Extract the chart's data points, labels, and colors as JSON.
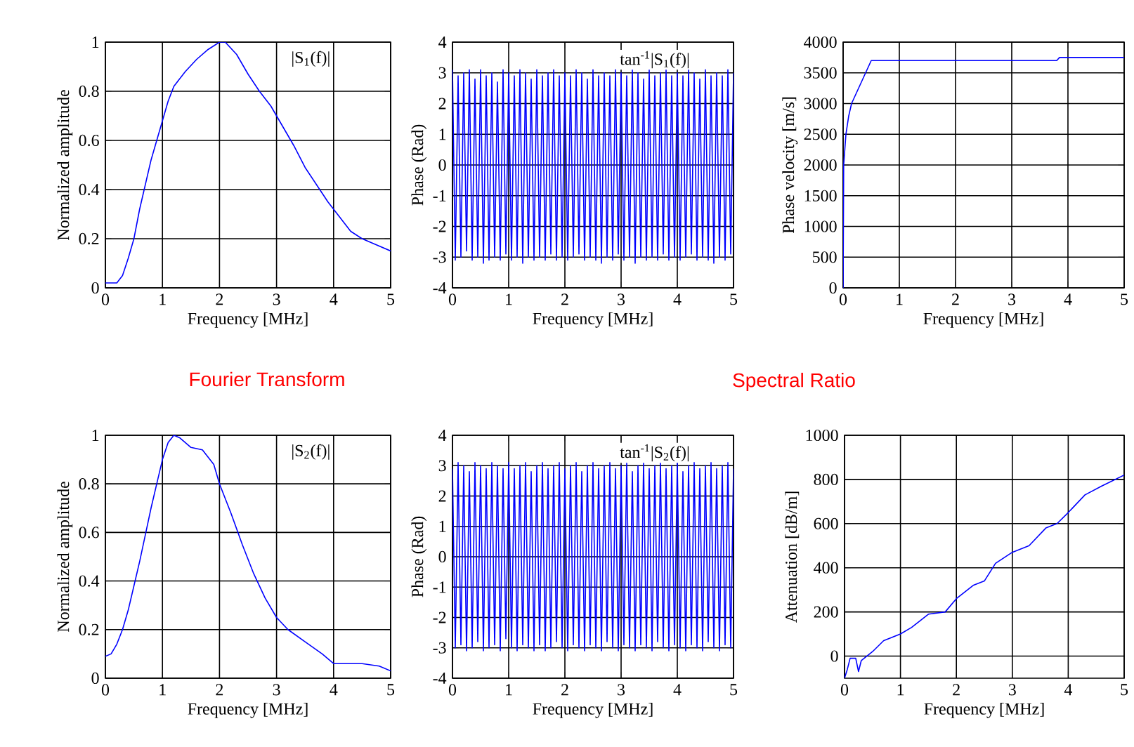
{
  "chart_data": [
    {
      "type": "line",
      "xlabel": "Frequency [MHz]",
      "ylabel": "Normalized amplitude",
      "annotations": [
        "|S$_{1}$(f)|"
      ],
      "xlim": [
        0,
        5
      ],
      "ylim": [
        0,
        1
      ],
      "xticks": [
        0,
        1,
        2,
        3,
        4,
        5
      ],
      "yticks": [
        0,
        0.2,
        0.4,
        0.6,
        0.8,
        1
      ],
      "grid": true,
      "series": [
        {
          "color": "#0000ff",
          "x": [
            0,
            0.2,
            0.3,
            0.4,
            0.5,
            0.6,
            0.7,
            0.8,
            0.9,
            1.0,
            1.1,
            1.2,
            1.4,
            1.6,
            1.8,
            2.0,
            2.1,
            2.3,
            2.5,
            2.7,
            2.9,
            3.1,
            3.3,
            3.5,
            3.7,
            3.9,
            4.1,
            4.3,
            4.5,
            4.7,
            5.0
          ],
          "values": [
            0.02,
            0.02,
            0.05,
            0.12,
            0.2,
            0.32,
            0.42,
            0.52,
            0.6,
            0.68,
            0.76,
            0.82,
            0.88,
            0.93,
            0.97,
            1.0,
            1.0,
            0.95,
            0.87,
            0.8,
            0.74,
            0.66,
            0.58,
            0.49,
            0.42,
            0.35,
            0.29,
            0.23,
            0.2,
            0.18,
            0.15
          ]
        }
      ]
    },
    {
      "type": "line",
      "xlabel": "Frequency [MHz]",
      "ylabel": "Phase (Rad)",
      "annotations": [
        "tan$^{-1}$|S$_{1}$(f)|"
      ],
      "xlim": [
        0,
        5
      ],
      "ylim": [
        -4,
        4
      ],
      "xticks": [
        0,
        1,
        2,
        3,
        4,
        5
      ],
      "yticks": [
        -4,
        -3,
        -2,
        -1,
        0,
        1,
        2,
        3,
        4
      ],
      "grid": true,
      "series": [
        {
          "color": "#0000ff",
          "x": [
            0,
            0.05,
            0.1,
            0.15,
            0.2,
            0.25,
            0.3,
            0.35,
            0.4,
            0.45,
            0.5,
            0.55,
            0.6,
            0.65,
            0.7,
            0.75,
            0.8,
            0.85,
            0.9,
            0.95,
            1,
            1.05,
            1.1,
            1.15,
            1.2,
            1.25,
            1.3,
            1.35,
            1.4,
            1.45,
            1.5,
            1.55,
            1.6,
            1.65,
            1.7,
            1.75,
            1.8,
            1.85,
            1.9,
            1.95,
            2,
            2.05,
            2.1,
            2.15,
            2.2,
            2.25,
            2.3,
            2.35,
            2.4,
            2.45,
            2.5,
            2.55,
            2.6,
            2.65,
            2.7,
            2.75,
            2.8,
            2.85,
            2.9,
            2.95,
            3,
            3.05,
            3.1,
            3.15,
            3.2,
            3.25,
            3.3,
            3.35,
            3.4,
            3.45,
            3.5,
            3.55,
            3.6,
            3.65,
            3.7,
            3.75,
            3.8,
            3.85,
            3.9,
            3.95,
            4,
            4.05,
            4.1,
            4.15,
            4.2,
            4.25,
            4.3,
            4.35,
            4.4,
            4.45,
            4.5,
            4.55,
            4.6,
            4.65,
            4.7,
            4.75,
            4.8,
            4.85,
            4.9,
            4.95,
            5
          ],
          "values": [
            3.1,
            -3.1,
            2.9,
            -3.0,
            3.0,
            -2.8,
            3.1,
            -3.1,
            2.8,
            -3.0,
            3.1,
            -3.2,
            2.9,
            -3.1,
            3.0,
            -3.0,
            2.7,
            -3.1,
            3.1,
            -2.9,
            3.0,
            -3.1,
            2.9,
            -3.0,
            3.1,
            -3.2,
            3.0,
            -3.0,
            2.8,
            -3.1,
            3.1,
            -3.0,
            2.9,
            -3.1,
            3.0,
            -2.9,
            3.1,
            -3.1,
            2.9,
            -3.0,
            3.0,
            -3.1,
            2.9,
            -3.0,
            3.1,
            -2.9,
            3.0,
            -3.1,
            2.8,
            -3.0,
            3.1,
            -3.1,
            2.9,
            -3.2,
            3.0,
            -3.0,
            2.9,
            -3.1,
            3.1,
            -2.9,
            3.0,
            -3.1,
            2.9,
            -3.0,
            3.1,
            -3.2,
            3.0,
            -3.0,
            2.8,
            -3.1,
            3.1,
            -3.0,
            2.9,
            -3.1,
            3.0,
            -2.9,
            3.1,
            -3.1,
            2.9,
            -3.0,
            3.0,
            -3.1,
            2.9,
            -3.0,
            3.1,
            -2.9,
            3.0,
            -3.1,
            2.8,
            -3.0,
            3.1,
            -3.1,
            2.9,
            -3.2,
            3.0,
            -3.0,
            2.9,
            -3.1,
            3.1,
            -2.9,
            3.0
          ]
        }
      ]
    },
    {
      "type": "line",
      "xlabel": "Frequency [MHz]",
      "ylabel": "Phase velocity [m/s]",
      "xlim": [
        0,
        5
      ],
      "ylim": [
        0,
        4000
      ],
      "xticks": [
        0,
        1,
        2,
        3,
        4,
        5
      ],
      "yticks": [
        0,
        500,
        1000,
        1500,
        2000,
        2500,
        3000,
        3500,
        4000
      ],
      "grid": true,
      "series": [
        {
          "color": "#0000ff",
          "x": [
            0,
            0.01,
            0.05,
            0.1,
            0.15,
            0.25,
            0.35,
            0.5,
            1,
            2,
            3,
            3.8,
            3.85,
            5
          ],
          "values": [
            0,
            2000,
            2500,
            2800,
            3000,
            3200,
            3400,
            3700,
            3700,
            3700,
            3700,
            3700,
            3750,
            3750
          ]
        }
      ]
    },
    {
      "type": "line",
      "xlabel": "Frequency [MHz]",
      "ylabel": "Normalized amplitude",
      "annotations": [
        "|S$_{2}$(f)|"
      ],
      "xlim": [
        0,
        5
      ],
      "ylim": [
        0,
        1
      ],
      "xticks": [
        0,
        1,
        2,
        3,
        4,
        5
      ],
      "yticks": [
        0,
        0.2,
        0.4,
        0.6,
        0.8,
        1
      ],
      "grid": true,
      "series": [
        {
          "color": "#0000ff",
          "x": [
            0,
            0.1,
            0.2,
            0.3,
            0.4,
            0.5,
            0.6,
            0.7,
            0.8,
            0.9,
            1.0,
            1.1,
            1.2,
            1.3,
            1.5,
            1.7,
            1.9,
            2.0,
            2.2,
            2.4,
            2.6,
            2.8,
            3.0,
            3.2,
            3.5,
            3.8,
            4.0,
            4.2,
            4.5,
            4.8,
            5.0
          ],
          "values": [
            0.09,
            0.1,
            0.14,
            0.2,
            0.28,
            0.38,
            0.48,
            0.59,
            0.7,
            0.8,
            0.9,
            0.97,
            1.0,
            0.99,
            0.95,
            0.94,
            0.88,
            0.8,
            0.68,
            0.55,
            0.43,
            0.33,
            0.25,
            0.2,
            0.15,
            0.1,
            0.06,
            0.06,
            0.06,
            0.05,
            0.03
          ]
        }
      ]
    },
    {
      "type": "line",
      "xlabel": "Frequency [MHz]",
      "ylabel": "Phase (Rad)",
      "annotations": [
        "tan$^{-1}$|S$_{2}$(f)|"
      ],
      "xlim": [
        0,
        5
      ],
      "ylim": [
        -4,
        4
      ],
      "xticks": [
        0,
        1,
        2,
        3,
        4,
        5
      ],
      "yticks": [
        -4,
        -3,
        -2,
        -1,
        0,
        1,
        2,
        3,
        4
      ],
      "grid": true,
      "series": [
        {
          "color": "#0000ff",
          "x": [
            0,
            0.05,
            0.1,
            0.15,
            0.2,
            0.25,
            0.3,
            0.35,
            0.4,
            0.45,
            0.5,
            0.55,
            0.6,
            0.65,
            0.7,
            0.75,
            0.8,
            0.85,
            0.9,
            0.95,
            1,
            1.05,
            1.1,
            1.15,
            1.2,
            1.25,
            1.3,
            1.35,
            1.4,
            1.45,
            1.5,
            1.55,
            1.6,
            1.65,
            1.7,
            1.75,
            1.8,
            1.85,
            1.9,
            1.95,
            2,
            2.05,
            2.1,
            2.15,
            2.2,
            2.25,
            2.3,
            2.35,
            2.4,
            2.45,
            2.5,
            2.55,
            2.6,
            2.65,
            2.7,
            2.75,
            2.8,
            2.85,
            2.9,
            2.95,
            3,
            3.05,
            3.1,
            3.15,
            3.2,
            3.25,
            3.3,
            3.35,
            3.4,
            3.45,
            3.5,
            3.55,
            3.6,
            3.65,
            3.7,
            3.75,
            3.8,
            3.85,
            3.9,
            3.95,
            4,
            4.05,
            4.1,
            4.15,
            4.2,
            4.25,
            4.3,
            4.35,
            4.4,
            4.45,
            4.5,
            4.55,
            4.6,
            4.65,
            4.7,
            4.75,
            4.8,
            4.85,
            4.9,
            4.95,
            5
          ],
          "values": [
            2.9,
            -3.0,
            3.1,
            -2.9,
            3.0,
            -3.1,
            2.8,
            -3.0,
            3.1,
            -2.8,
            3.0,
            -3.1,
            2.9,
            -3.0,
            3.1,
            -2.9,
            3.0,
            -3.1,
            2.9,
            -2.7,
            3.1,
            -3.0,
            2.9,
            -3.1,
            3.0,
            -2.9,
            3.1,
            -3.0,
            2.8,
            -3.1,
            3.0,
            -2.9,
            3.1,
            -3.1,
            2.9,
            -3.0,
            3.0,
            -2.8,
            3.1,
            -3.0,
            2.9,
            -3.1,
            3.0,
            -2.9,
            3.1,
            -3.0,
            2.8,
            -3.1,
            3.0,
            -2.9,
            3.1,
            -3.0,
            2.9,
            -3.1,
            3.0,
            -2.8,
            3.1,
            -3.0,
            2.9,
            -3.1,
            3.0,
            -2.9,
            3.1,
            -3.0,
            2.8,
            -3.1,
            3.0,
            -2.9,
            3.1,
            -3.0,
            2.9,
            -3.1,
            3.0,
            -2.8,
            3.1,
            -3.0,
            2.9,
            -3.1,
            3.0,
            -2.9,
            3.1,
            -3.0,
            2.8,
            -3.1,
            3.0,
            -2.9,
            3.1,
            -3.0,
            2.9,
            -3.1,
            3.0,
            -2.8,
            3.1,
            -3.0,
            2.9,
            -3.1,
            3.0,
            -2.9,
            3.1,
            -3.0,
            2.9
          ]
        }
      ]
    },
    {
      "type": "line",
      "xlabel": "Frequency [MHz]",
      "ylabel": "Attenuation [dB/m]",
      "xlim": [
        0,
        5
      ],
      "ylim": [
        -100,
        1000
      ],
      "xticks": [
        0,
        1,
        2,
        3,
        4,
        5
      ],
      "yticks": [
        0,
        200,
        400,
        600,
        800,
        1000
      ],
      "grid": true,
      "series": [
        {
          "color": "#0000ff",
          "x": [
            0,
            0.05,
            0.1,
            0.2,
            0.25,
            0.3,
            0.5,
            0.7,
            1.0,
            1.2,
            1.5,
            1.8,
            2.0,
            2.3,
            2.5,
            2.7,
            3.0,
            3.3,
            3.6,
            3.8,
            4.0,
            4.3,
            4.6,
            5.0
          ],
          "values": [
            -100,
            -60,
            -10,
            -10,
            -70,
            -20,
            20,
            70,
            100,
            130,
            190,
            200,
            260,
            320,
            340,
            420,
            470,
            500,
            580,
            600,
            650,
            730,
            770,
            820
          ]
        }
      ]
    },
    {
      "type": "other",
      "annotations": [
        "Fourier Transform",
        "Spectral Ratio"
      ]
    }
  ]
}
